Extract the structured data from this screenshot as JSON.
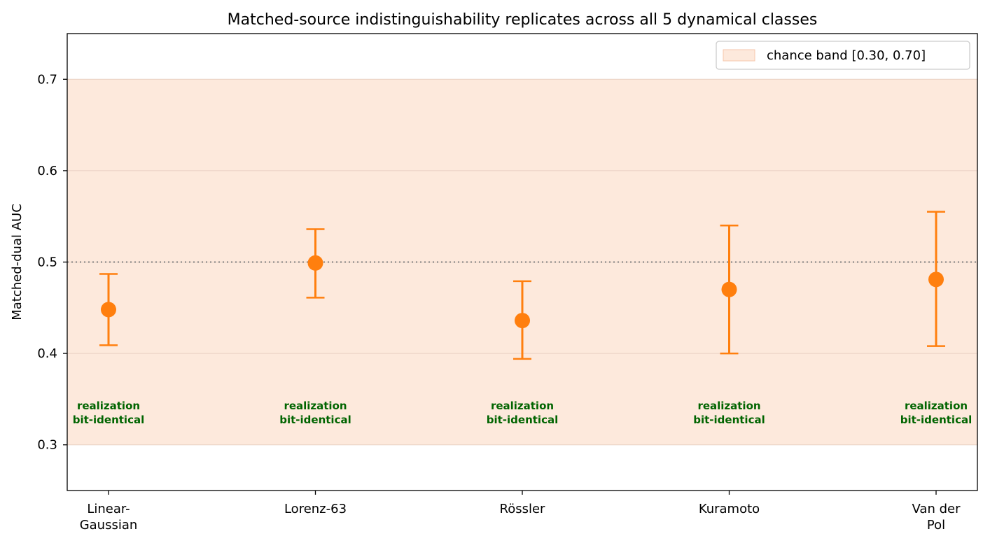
{
  "chart_data": {
    "type": "scatter",
    "title": "Matched-source indistinguishability replicates across all 5 dynamical classes",
    "ylabel": "Matched-dual AUC",
    "xlabel": "",
    "ylim": [
      0.25,
      0.75
    ],
    "yticks": [
      0.3,
      0.4,
      0.5,
      0.6,
      0.7
    ],
    "ytick_labels": [
      "0.3",
      "0.4",
      "0.5",
      "0.6",
      "0.7"
    ],
    "categories": [
      [
        "Linear-",
        "Gaussian"
      ],
      [
        "Lorenz-63"
      ],
      [
        "Rössler"
      ],
      [
        "Kuramoto"
      ],
      [
        "Van der",
        "Pol"
      ]
    ],
    "series": [
      {
        "values": [
          0.448,
          0.499,
          0.436,
          0.47,
          0.481
        ],
        "err_low": [
          0.409,
          0.461,
          0.394,
          0.4,
          0.408
        ],
        "err_high": [
          0.487,
          0.536,
          0.479,
          0.54,
          0.555
        ],
        "color": "#ff7f0e"
      }
    ],
    "chance_band": {
      "low": 0.3,
      "high": 0.7,
      "label": "chance band [0.30, 0.70]",
      "color": "#fde9dc"
    },
    "reference_line": {
      "y": 0.5,
      "style": "dotted",
      "color": "#808080"
    },
    "annotations": [
      {
        "line1": "realization",
        "line2": "bit-identical",
        "y": 0.335,
        "color": "#006400"
      },
      {
        "line1": "realization",
        "line2": "bit-identical",
        "y": 0.335,
        "color": "#006400"
      },
      {
        "line1": "realization",
        "line2": "bit-identical",
        "y": 0.335,
        "color": "#006400"
      },
      {
        "line1": "realization",
        "line2": "bit-identical",
        "y": 0.335,
        "color": "#006400"
      },
      {
        "line1": "realization",
        "line2": "bit-identical",
        "y": 0.335,
        "color": "#006400"
      }
    ],
    "grid": "horizontal",
    "legend_placement": "top-right"
  }
}
